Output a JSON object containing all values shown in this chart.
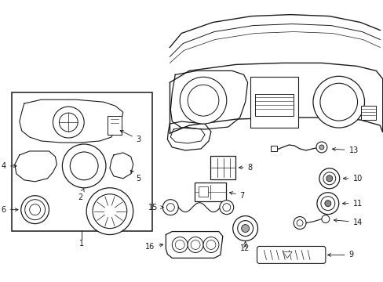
{
  "bg_color": "#ffffff",
  "fig_width": 4.89,
  "fig_height": 3.6,
  "dpi": 100,
  "line_color": "#1a1a1a"
}
